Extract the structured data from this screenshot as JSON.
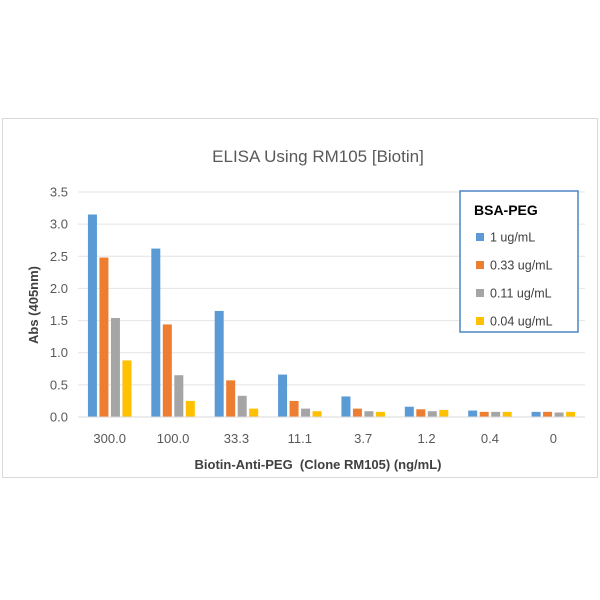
{
  "chart_data": {
    "type": "bar",
    "title": "ELISA Using RM105 [Biotin]",
    "xlabel": "Biotin-Anti-PEG  (Clone RM105) (ng/mL)",
    "ylabel": "Abs (405nm)",
    "ylim": [
      0,
      3.5
    ],
    "yticks": [
      "0.0",
      "0.5",
      "1.0",
      "1.5",
      "2.0",
      "2.5",
      "3.0",
      "3.5"
    ],
    "grid": true,
    "legend_title": "BSA-PEG",
    "legend_position": "top-right",
    "categories": [
      "300.0",
      "100.0",
      "33.3",
      "11.1",
      "3.7",
      "1.2",
      "0.4",
      "0"
    ],
    "series": [
      {
        "name": "1 ug/mL",
        "color": "#5B9BD5",
        "values": [
          3.15,
          2.62,
          1.65,
          0.66,
          0.32,
          0.16,
          0.1,
          0.08
        ]
      },
      {
        "name": "0.33 ug/mL",
        "color": "#ED7D31",
        "values": [
          2.48,
          1.44,
          0.57,
          0.25,
          0.13,
          0.12,
          0.08,
          0.08
        ]
      },
      {
        "name": "0.11 ug/mL",
        "color": "#A5A5A5",
        "values": [
          1.54,
          0.65,
          0.33,
          0.13,
          0.09,
          0.09,
          0.08,
          0.07
        ]
      },
      {
        "name": "0.04 ug/mL",
        "color": "#FFC000",
        "values": [
          0.88,
          0.25,
          0.13,
          0.09,
          0.08,
          0.11,
          0.08,
          0.08
        ]
      }
    ]
  }
}
